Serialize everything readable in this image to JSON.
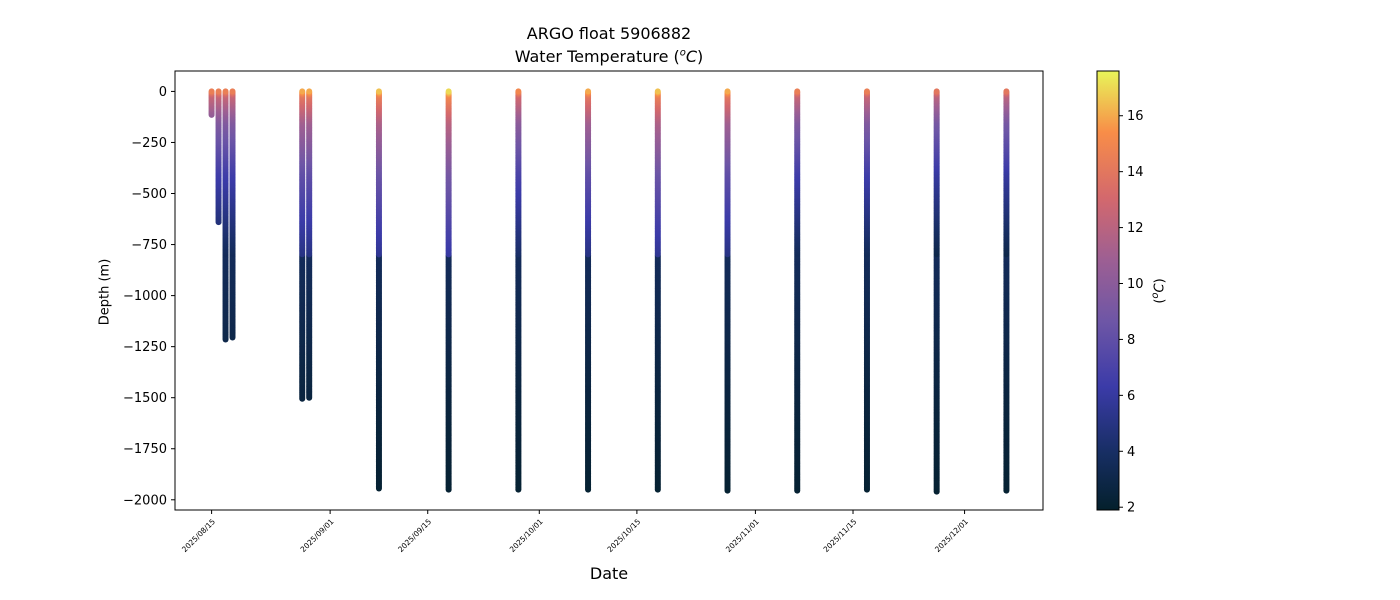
{
  "chart_data": {
    "type": "scatter",
    "title_line1": "ARGO float 5906882",
    "title_line2_prefix": "Water Temperature (",
    "title_line2_sup": "o",
    "title_line2_unit": "C",
    "title_line2_suffix": ")",
    "xlabel": "Date",
    "ylabel": "Depth (m)",
    "colorbar_label_prefix": "(",
    "colorbar_label_sup": "o",
    "colorbar_label_unit": "C",
    "colorbar_label_suffix": ")",
    "colormap": "thermal",
    "colorbar_range": [
      1.9,
      17.6
    ],
    "colorbar_ticks": [
      2,
      4,
      6,
      8,
      10,
      12,
      14,
      16
    ],
    "xlim": [
      "2025-08-09T18:00",
      "2025-12-12T06:00"
    ],
    "ylim": [
      -2050,
      100
    ],
    "x_ticks": [
      "2025/08/15",
      "2025/09/01",
      "2025/09/15",
      "2025/10/01",
      "2025/10/15",
      "2025/11/01",
      "2025/11/15",
      "2025/12/01"
    ],
    "y_ticks": [
      0,
      -250,
      -500,
      -750,
      -1000,
      -1250,
      -1500,
      -1750,
      -2000
    ],
    "y_tick_labels": [
      "0",
      "−250",
      "−500",
      "−750",
      "−1000",
      "−1250",
      "−1500",
      "−1750",
      "−2000"
    ],
    "profiles": [
      {
        "date": "2025-08-15T00:00",
        "max_depth": -115,
        "surface_temp": 14.5
      },
      {
        "date": "2025-08-16T00:00",
        "max_depth": -640,
        "surface_temp": 14.5
      },
      {
        "date": "2025-08-17T00:00",
        "max_depth": -1215,
        "surface_temp": 14.5
      },
      {
        "date": "2025-08-18T00:00",
        "max_depth": -1205,
        "surface_temp": 14.5
      },
      {
        "date": "2025-08-28T00:00",
        "max_depth": -1505,
        "surface_temp": 16.0
      },
      {
        "date": "2025-08-29T00:00",
        "max_depth": -1500,
        "surface_temp": 16.0
      },
      {
        "date": "2025-09-08T00:00",
        "max_depth": -1945,
        "surface_temp": 16.5
      },
      {
        "date": "2025-09-18T00:00",
        "max_depth": -1950,
        "surface_temp": 17.0
      },
      {
        "date": "2025-09-28T00:00",
        "max_depth": -1950,
        "surface_temp": 15.0
      },
      {
        "date": "2025-10-08T00:00",
        "max_depth": -1950,
        "surface_temp": 16.0
      },
      {
        "date": "2025-10-18T00:00",
        "max_depth": -1950,
        "surface_temp": 16.5
      },
      {
        "date": "2025-10-28T00:00",
        "max_depth": -1955,
        "surface_temp": 16.0
      },
      {
        "date": "2025-11-07T00:00",
        "max_depth": -1955,
        "surface_temp": 14.5
      },
      {
        "date": "2025-11-17T00:00",
        "max_depth": -1950,
        "surface_temp": 14.5
      },
      {
        "date": "2025-11-27T00:00",
        "max_depth": -1960,
        "surface_temp": 14.0
      },
      {
        "date": "2025-12-07T00:00",
        "max_depth": -1955,
        "surface_temp": 14.0
      }
    ]
  }
}
